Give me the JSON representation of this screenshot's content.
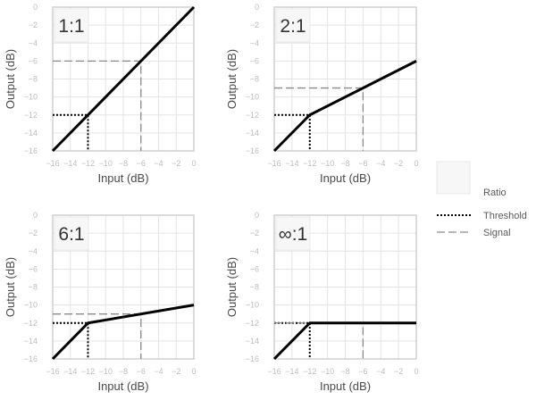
{
  "chart_data": [
    {
      "type": "line",
      "ratio_label": "1:1",
      "xlabel": "Input (dB)",
      "ylabel": "Output (dB)",
      "xlim": [
        -16,
        0
      ],
      "ylim": [
        -16,
        0
      ],
      "ticks": [
        0,
        -2,
        -4,
        -6,
        -8,
        -10,
        -12,
        -14,
        -16
      ],
      "grid": true,
      "threshold_point": [
        -12,
        -12
      ],
      "signal_point": [
        -6,
        -6
      ],
      "curve": {
        "x": [
          -16,
          -12,
          0
        ],
        "y": [
          -16,
          -12,
          0
        ]
      }
    },
    {
      "type": "line",
      "ratio_label": "2:1",
      "xlabel": "Input (dB)",
      "ylabel": "Output (dB)",
      "xlim": [
        -16,
        0
      ],
      "ylim": [
        -16,
        0
      ],
      "ticks": [
        0,
        -2,
        -4,
        -6,
        -8,
        -10,
        -12,
        -14,
        -16
      ],
      "grid": true,
      "threshold_point": [
        -12,
        -12
      ],
      "signal_point": [
        -6,
        -9
      ],
      "curve": {
        "x": [
          -16,
          -12,
          0
        ],
        "y": [
          -16,
          -12,
          -6
        ]
      }
    },
    {
      "type": "line",
      "ratio_label": "6:1",
      "xlabel": "Input (dB)",
      "ylabel": "Output (dB)",
      "xlim": [
        -16,
        0
      ],
      "ylim": [
        -16,
        0
      ],
      "ticks": [
        0,
        -2,
        -4,
        -6,
        -8,
        -10,
        -12,
        -14,
        -16
      ],
      "grid": true,
      "threshold_point": [
        -12,
        -12
      ],
      "signal_point": [
        -6,
        -11
      ],
      "curve": {
        "x": [
          -16,
          -12,
          0
        ],
        "y": [
          -16,
          -12,
          -10
        ]
      }
    },
    {
      "type": "line",
      "ratio_label": "∞:1",
      "xlabel": "Input (dB)",
      "ylabel": "Output (dB)",
      "xlim": [
        -16,
        0
      ],
      "ylim": [
        -16,
        0
      ],
      "ticks": [
        0,
        -2,
        -4,
        -6,
        -8,
        -10,
        -12,
        -14,
        -16
      ],
      "grid": true,
      "threshold_point": [
        -12,
        -12
      ],
      "signal_point": [
        -6,
        -12
      ],
      "curve": {
        "x": [
          -16,
          -12,
          0
        ],
        "y": [
          -16,
          -12,
          -12
        ]
      }
    }
  ],
  "legend": {
    "placement": "right",
    "items": [
      {
        "key": "ratio",
        "label": "Ratio",
        "style": "box"
      },
      {
        "key": "threshold",
        "label": "Threshold",
        "style": "dotted"
      },
      {
        "key": "signal",
        "label": "Signal",
        "style": "dashed"
      }
    ]
  },
  "colors": {
    "curve": "#000000",
    "grid": "#e3e3e3",
    "frame": "#cfcfcf",
    "tick_text": "#bdbdbd",
    "label_text": "#4a4a4a",
    "threshold": "#000000",
    "signal": "#8a8a8a",
    "ratio_box_fill": "#f7f7f7",
    "ratio_box_stroke": "#e8e8e8"
  }
}
